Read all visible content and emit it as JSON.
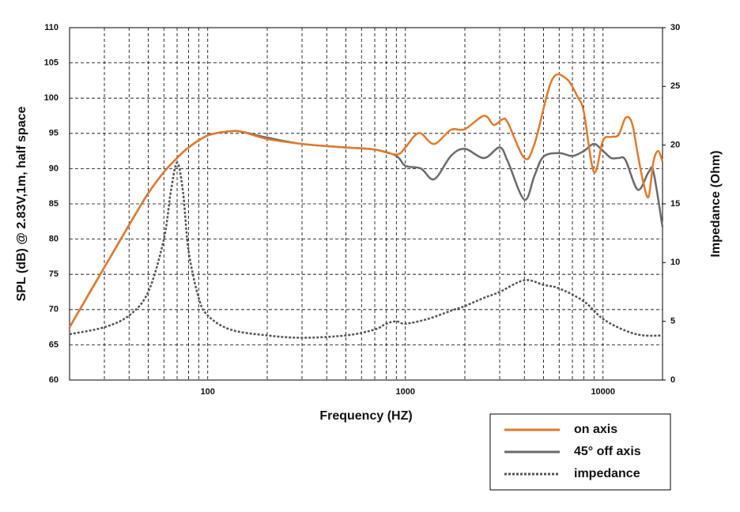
{
  "chart_data": {
    "type": "line",
    "xlabel": "Frequency (HZ)",
    "ylabel": "SPL (dB) @ 2.83V,1m, half space",
    "y2label": "Impedance (Ohm)",
    "xscale": "log",
    "xlim": [
      20,
      20000
    ],
    "xticks": [
      100,
      1000,
      10000
    ],
    "ylim": [
      60,
      110
    ],
    "yticks": [
      60,
      65,
      70,
      75,
      80,
      85,
      90,
      95,
      100,
      105,
      110
    ],
    "y2lim": [
      0,
      30
    ],
    "y2ticks": [
      0,
      5,
      10,
      15,
      20,
      25,
      30
    ],
    "grid": true,
    "legend": "bottom-right",
    "series": [
      {
        "name": "on axis",
        "color": "#e07a2e",
        "linestyle": "solid",
        "x": [
          20,
          30,
          40,
          50,
          60,
          70,
          80,
          100,
          130,
          150,
          200,
          300,
          400,
          500,
          700,
          900,
          1000,
          1100,
          1200,
          1400,
          1700,
          2000,
          2500,
          2800,
          3100,
          3300,
          4000,
          4500,
          5500,
          6500,
          7500,
          8000,
          9000,
          10000,
          11000,
          12000,
          13000,
          14000,
          15000,
          16000,
          17000,
          18000,
          19000,
          20000
        ],
        "values": [
          67.5,
          76,
          82,
          86.5,
          89.5,
          91.5,
          93,
          94.7,
          95.3,
          95.2,
          94.2,
          93.5,
          93.2,
          93,
          92.7,
          92,
          93,
          94.5,
          95,
          93.5,
          95.5,
          95.6,
          97.5,
          96.2,
          97,
          96.5,
          91.5,
          93.5,
          102.5,
          102.8,
          100,
          98,
          89.5,
          94,
          94.5,
          94.8,
          97.2,
          96.5,
          92,
          88,
          86,
          91,
          92.5,
          91
        ]
      },
      {
        "name": "45° off axis",
        "color": "#6b6b6b",
        "linestyle": "solid",
        "x": [
          20,
          30,
          40,
          50,
          60,
          70,
          80,
          100,
          130,
          150,
          200,
          300,
          500,
          700,
          900,
          1000,
          1200,
          1400,
          1700,
          2000,
          2500,
          3000,
          3300,
          4000,
          4500,
          5000,
          6000,
          7000,
          8000,
          9000,
          10000,
          11000,
          12000,
          13000,
          15000,
          17000,
          18000,
          20000
        ],
        "values": [
          67.5,
          76,
          82,
          86.5,
          89.5,
          91.5,
          93,
          94.7,
          95.3,
          95.2,
          94.4,
          93.5,
          93,
          92.7,
          91.8,
          90.4,
          90,
          88.5,
          91.8,
          92.8,
          91.5,
          93,
          91,
          85.6,
          89,
          91.7,
          92.2,
          91.8,
          92.5,
          93.5,
          92.5,
          91.5,
          91.5,
          91.2,
          87,
          89.5,
          89.5,
          81.7
        ]
      },
      {
        "name": "impedance",
        "color": "#555555",
        "linestyle": "dotted",
        "axis": "y2",
        "x": [
          20,
          30,
          40,
          50,
          60,
          65,
          70,
          75,
          80,
          90,
          100,
          130,
          200,
          300,
          500,
          700,
          800,
          900,
          1000,
          1300,
          1700,
          2000,
          2500,
          3000,
          4000,
          5000,
          6000,
          8000,
          10000,
          13000,
          16000,
          20000
        ],
        "values": [
          3.9,
          4.5,
          5.5,
          7.5,
          12,
          16,
          18.5,
          16,
          11,
          7,
          5.5,
          4.3,
          3.8,
          3.6,
          3.8,
          4.3,
          4.8,
          5,
          4.8,
          5.2,
          5.9,
          6.3,
          7,
          7.5,
          8.5,
          8.1,
          7.8,
          6.7,
          5.2,
          4.2,
          3.8,
          3.8
        ]
      }
    ]
  }
}
